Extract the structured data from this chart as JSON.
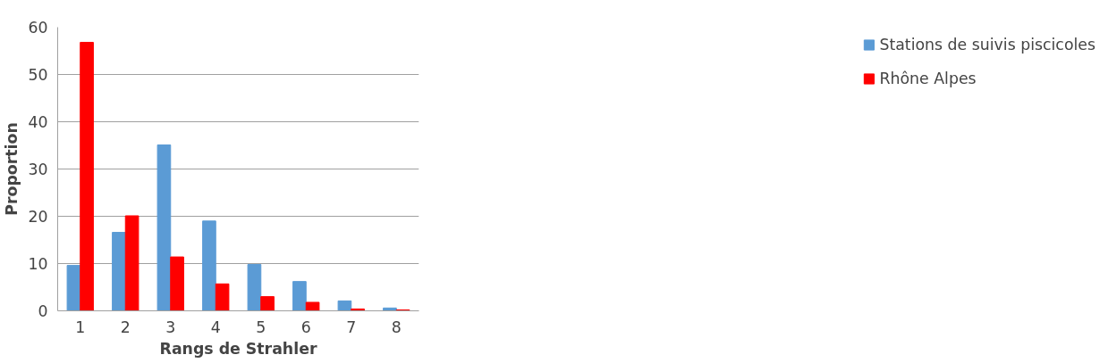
{
  "chart_data": {
    "type": "bar",
    "xlabel": "Rangs de Strahler",
    "ylabel": "Proportion",
    "categories": [
      "1",
      "2",
      "3",
      "4",
      "5",
      "6",
      "7",
      "8"
    ],
    "series": [
      {
        "name": "Stations de suivis piscicoles",
        "color": "#5b9bd5",
        "values": [
          9.6,
          16.6,
          35.1,
          19.0,
          9.8,
          6.2,
          2.1,
          0.6
        ]
      },
      {
        "name": "Rhône Alpes",
        "color": "#ff0000",
        "values": [
          56.8,
          20.1,
          11.4,
          5.7,
          3.0,
          1.8,
          0.4,
          0.2
        ]
      }
    ],
    "ylim": [
      0,
      60
    ],
    "yticks": [
      0,
      10,
      20,
      30,
      40,
      50,
      60
    ],
    "grid": "y",
    "legend": "right"
  }
}
